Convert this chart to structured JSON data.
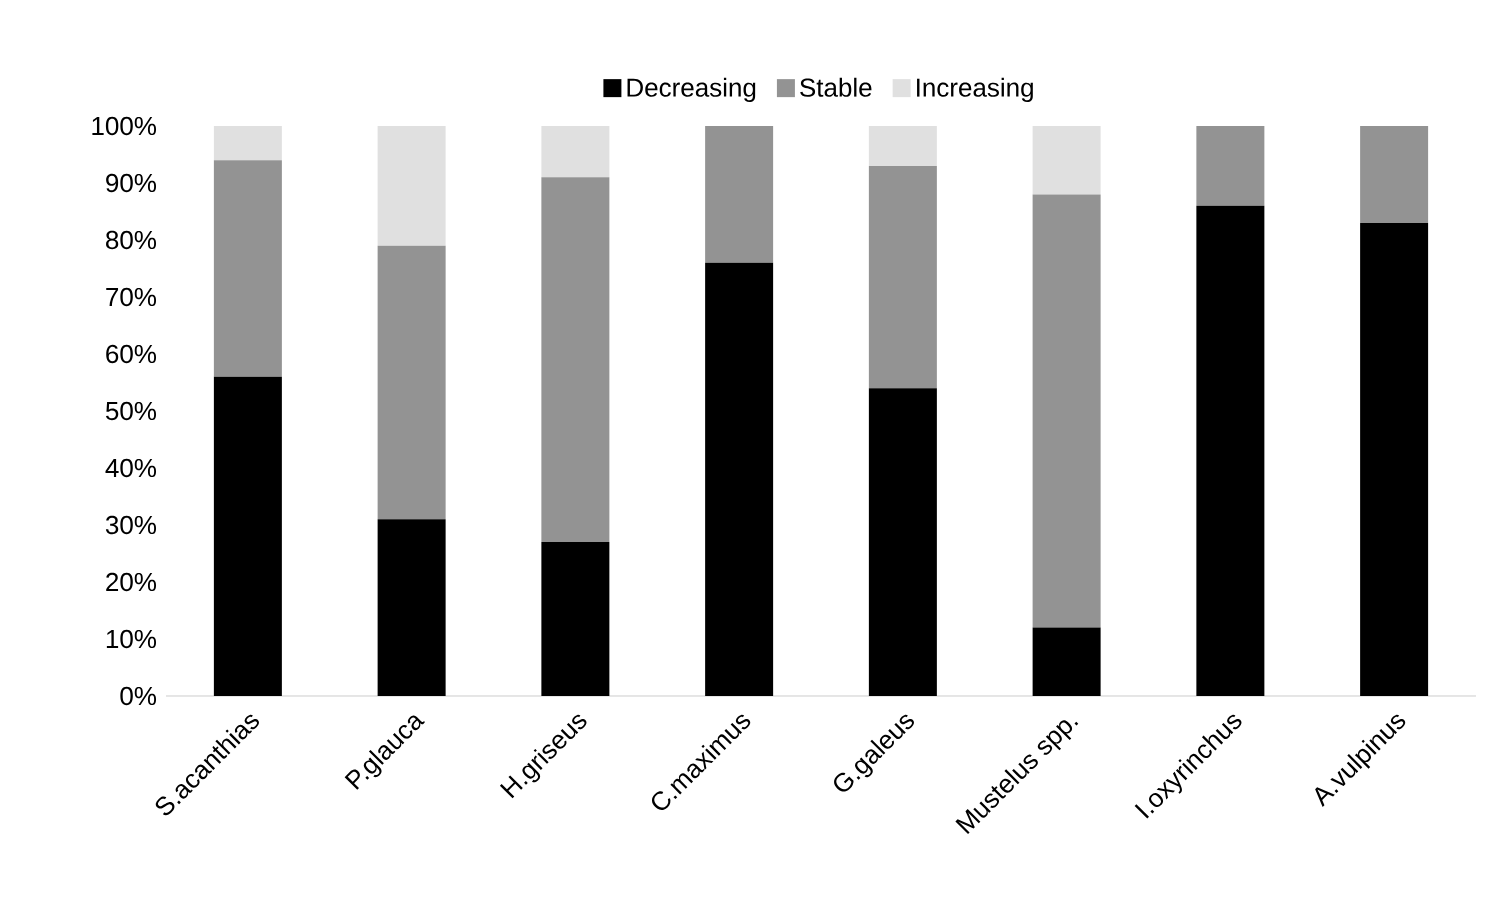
{
  "chart_data": {
    "type": "bar",
    "stacked": true,
    "legend": "top",
    "grid": false,
    "categories": [
      "S.acanthias",
      "P.glauca",
      "H.griseus",
      "C.maximus",
      "G.galeus",
      "Mustelus spp.",
      "I.oxyrinchus",
      "A.vulpinus"
    ],
    "series": [
      {
        "name": "Decreasing",
        "color": "#000000",
        "values": [
          56,
          31,
          27,
          76,
          54,
          12,
          86,
          83
        ]
      },
      {
        "name": "Stable",
        "color": "#939393",
        "values": [
          38,
          48,
          64,
          24,
          39,
          76,
          14,
          17
        ]
      },
      {
        "name": "Increasing",
        "color": "#e0e0e0",
        "values": [
          6,
          21,
          9,
          0,
          7,
          12,
          0,
          0
        ]
      }
    ],
    "ylim": [
      0,
      100
    ],
    "yticks": [
      {
        "value": 0,
        "label": "0%"
      },
      {
        "value": 10,
        "label": "10%"
      },
      {
        "value": 20,
        "label": "20%"
      },
      {
        "value": 30,
        "label": "30%"
      },
      {
        "value": 40,
        "label": "40%"
      },
      {
        "value": 50,
        "label": "50%"
      },
      {
        "value": 60,
        "label": "60%"
      },
      {
        "value": 70,
        "label": "70%"
      },
      {
        "value": 80,
        "label": "80%"
      },
      {
        "value": 90,
        "label": "90%"
      },
      {
        "value": 100,
        "label": "100%"
      }
    ]
  }
}
